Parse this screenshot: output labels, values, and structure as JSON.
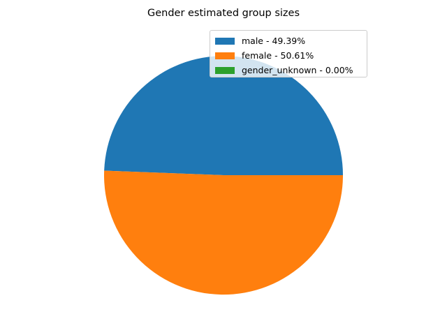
{
  "chart_data": {
    "type": "pie",
    "title": "Gender estimated group sizes",
    "slices": [
      {
        "label": "male - 49.39%",
        "value": 49.39,
        "color": "#1f77b4"
      },
      {
        "label": "female - 50.61%",
        "value": 50.61,
        "color": "#ff7f0e"
      },
      {
        "label": "gender_unknown - 0.00%",
        "value": 0.0,
        "color": "#2ca02c"
      }
    ],
    "start_angle_deg": 0,
    "direction": "counterclockwise",
    "legend_position": "upper-right"
  }
}
